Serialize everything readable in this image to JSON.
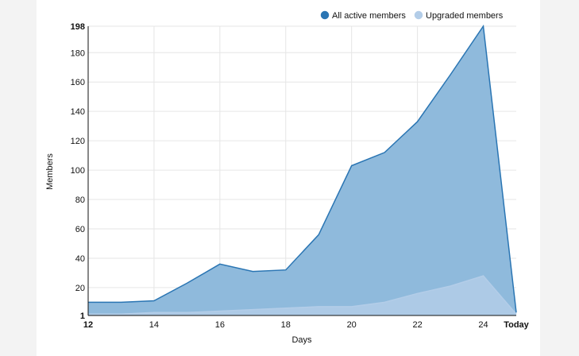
{
  "chart_data": {
    "type": "area",
    "xlabel": "Days",
    "ylabel": "Members",
    "x_tick_labels": [
      "12",
      "14",
      "16",
      "18",
      "20",
      "22",
      "24",
      "Today"
    ],
    "y_tick_labels": [
      "1",
      "20",
      "40",
      "60",
      "80",
      "100",
      "120",
      "140",
      "160",
      "180",
      "198"
    ],
    "ylim": [
      1,
      198
    ],
    "x_categories": [
      "12",
      "13",
      "14",
      "15",
      "16",
      "17",
      "18",
      "19",
      "20",
      "21",
      "22",
      "23",
      "24",
      "Today"
    ],
    "grid": true,
    "legend_position": "top-right",
    "series": [
      {
        "name": "All active members",
        "color": "#2a75b3",
        "fill": "#8fbadc",
        "values": [
          10,
          10,
          11,
          23,
          36,
          31,
          32,
          56,
          103,
          112,
          133,
          165,
          198,
          3
        ]
      },
      {
        "name": "Upgraded members",
        "color": "#b3cde8",
        "fill": "#b3cde8",
        "values": [
          2,
          2,
          3,
          3,
          4,
          5,
          6,
          7,
          7,
          10,
          16,
          21,
          28,
          2
        ]
      }
    ]
  }
}
